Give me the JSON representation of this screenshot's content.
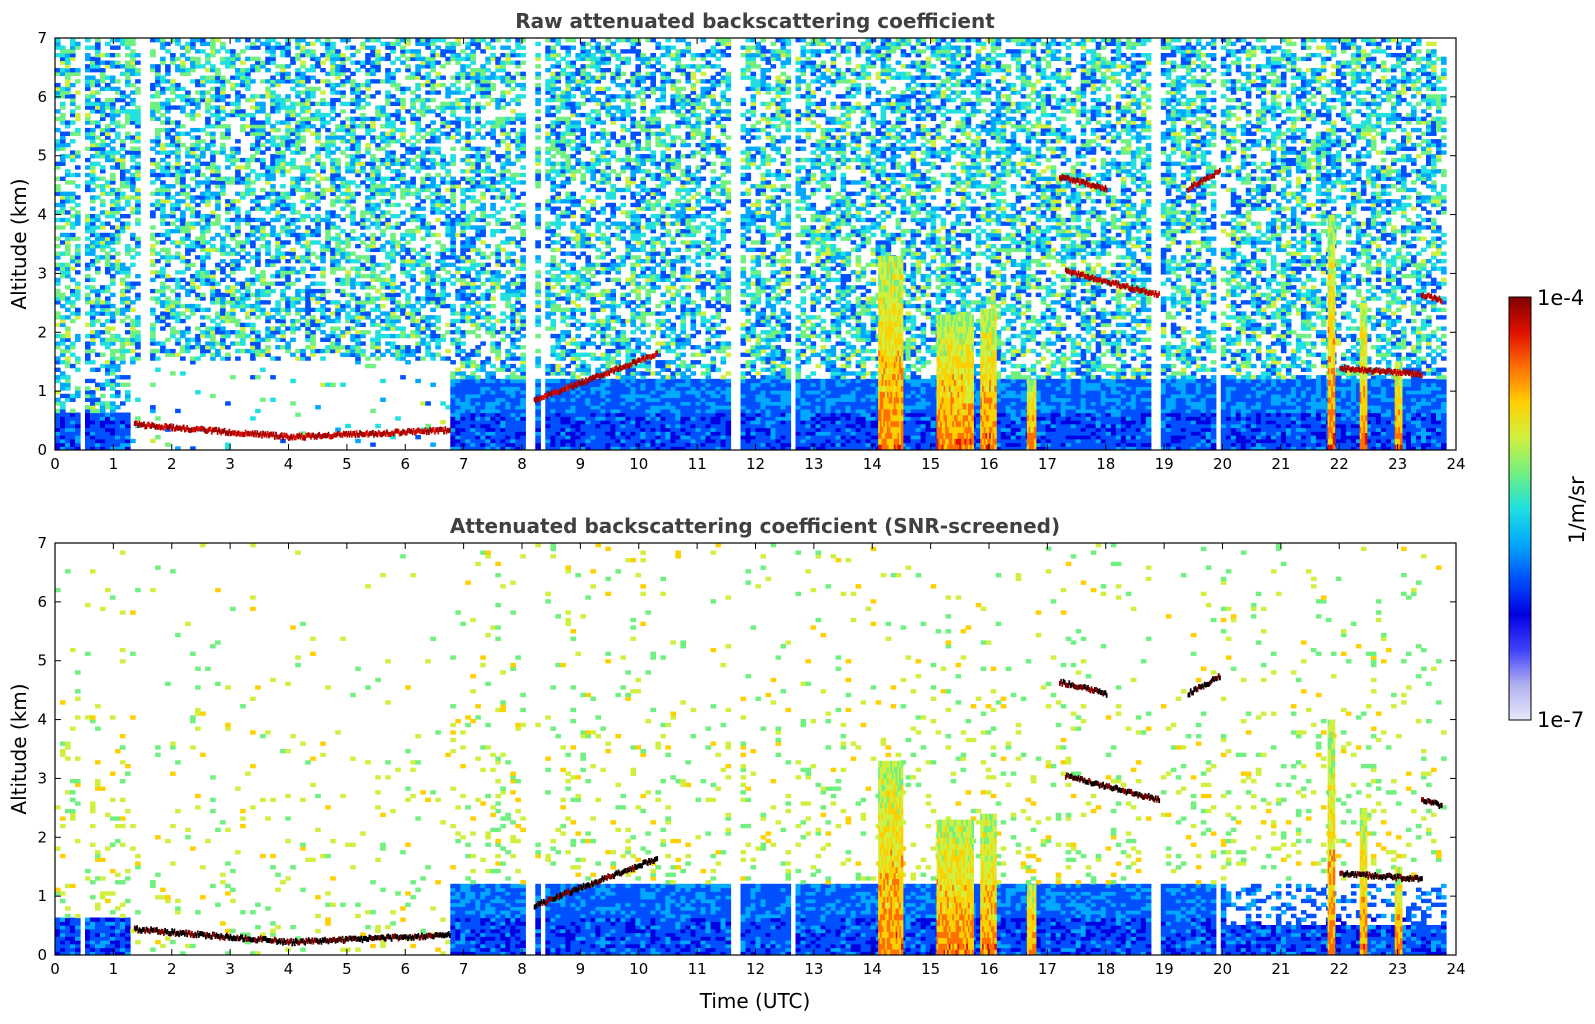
{
  "chart_data": [
    {
      "type": "heatmap",
      "title": "Raw attenuated backscattering coefficient",
      "xlabel": "",
      "ylabel": "Altitude (km)",
      "xlim": [
        0,
        24
      ],
      "ylim": [
        0,
        7
      ],
      "xticks": [
        "0",
        "1",
        "2",
        "3",
        "4",
        "5",
        "6",
        "7",
        "8",
        "9",
        "10",
        "11",
        "12",
        "13",
        "14",
        "15",
        "16",
        "17",
        "18",
        "19",
        "20",
        "21",
        "22",
        "23",
        "24"
      ],
      "yticks": [
        "0",
        "1",
        "2",
        "3",
        "4",
        "5",
        "6",
        "7"
      ],
      "layers": [
        {
          "t0": 1.35,
          "t1": 6.75,
          "z_start": 0.4,
          "z_mid": 0.18,
          "z_end": 0.3
        },
        {
          "t0": 8.2,
          "t1": 10.3,
          "z_start": 0.8,
          "z_end": 1.6
        },
        {
          "t0": 17.2,
          "t1": 18.0,
          "z_start": 4.6,
          "z_end": 4.4
        },
        {
          "t0": 17.3,
          "t1": 18.9,
          "z_start": 3.0,
          "z_end": 2.6
        },
        {
          "t0": 19.4,
          "t1": 19.95,
          "z_start": 4.4,
          "z_end": 4.7
        },
        {
          "t0": 22.0,
          "t1": 23.4,
          "z_start": 1.35,
          "z_end": 1.25
        },
        {
          "t0": 23.4,
          "t1": 23.75,
          "z_start": 2.6,
          "z_end": 2.5
        }
      ],
      "precipitation": [
        {
          "t0": 14.1,
          "t1": 14.5,
          "top": 3.3
        },
        {
          "t0": 15.1,
          "t1": 15.7,
          "top": 2.3
        },
        {
          "t0": 15.85,
          "t1": 16.1,
          "top": 2.4
        },
        {
          "t0": 16.65,
          "t1": 16.8,
          "top": 1.2
        },
        {
          "t0": 21.8,
          "t1": 21.9,
          "top": 4.0
        },
        {
          "t0": 22.35,
          "t1": 22.45,
          "top": 2.5
        },
        {
          "t0": 22.95,
          "t1": 23.05,
          "top": 1.5
        }
      ]
    },
    {
      "type": "heatmap",
      "title": "Attenuated backscattering coefficient (SNR-screened)",
      "xlabel": "Time (UTC)",
      "ylabel": "Altitude (km)",
      "xlim": [
        0,
        24
      ],
      "ylim": [
        0,
        7
      ],
      "xticks": [
        "0",
        "1",
        "2",
        "3",
        "4",
        "5",
        "6",
        "7",
        "8",
        "9",
        "10",
        "11",
        "12",
        "13",
        "14",
        "15",
        "16",
        "17",
        "18",
        "19",
        "20",
        "21",
        "22",
        "23",
        "24"
      ],
      "yticks": [
        "0",
        "1",
        "2",
        "3",
        "4",
        "5",
        "6",
        "7"
      ]
    }
  ],
  "colorbar": {
    "max_label": "1e-4",
    "min_label": "1e-7",
    "unit_label": "1/m/sr",
    "colors": [
      "#e8e8f8",
      "#b0b0f0",
      "#4040ff",
      "#0000e0",
      "#0050ff",
      "#00a8ff",
      "#20e0e0",
      "#70f080",
      "#d0f040",
      "#ffd000",
      "#ff7000",
      "#e01000",
      "#800000"
    ]
  }
}
